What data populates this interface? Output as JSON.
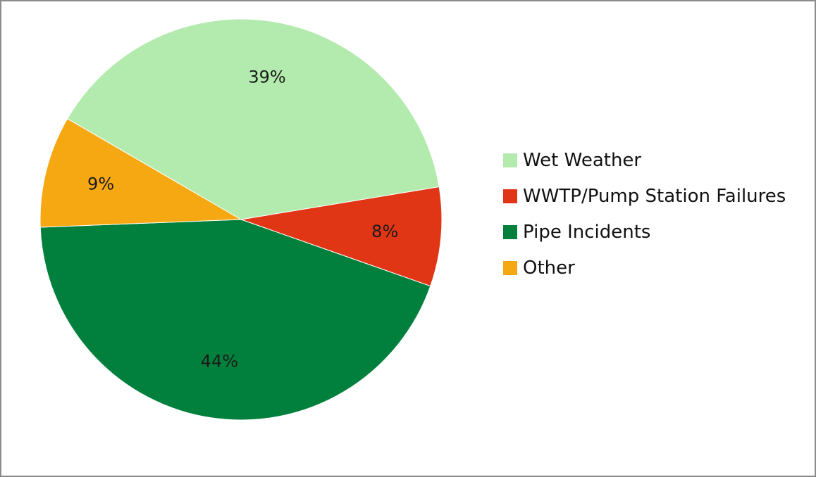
{
  "chart_data": {
    "type": "pie",
    "title": "",
    "legend_position": "right",
    "slices": [
      {
        "name": "Wet Weather",
        "value": 39,
        "label": "39%",
        "color": "#b3ebae"
      },
      {
        "name": "WWTP/Pump Station Failures",
        "value": 8,
        "label": "8%",
        "color": "#e03616"
      },
      {
        "name": "Pipe Incidents",
        "value": 44,
        "label": "44%",
        "color": "#00803c"
      },
      {
        "name": "Other",
        "value": 9,
        "label": "9%",
        "color": "#f5a812"
      }
    ]
  }
}
